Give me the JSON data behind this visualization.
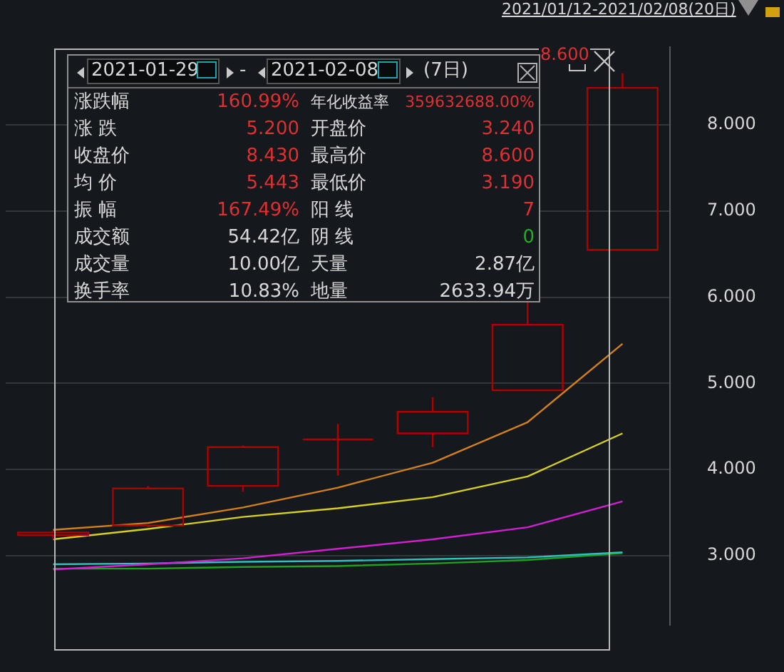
{
  "chart_data": {
    "type": "candlestick",
    "categories": [
      null,
      null,
      null,
      null,
      null,
      null,
      null
    ],
    "series": [
      {
        "color": "#b00000",
        "ohlc": [
          [
            3.24,
            3.29,
            3.19,
            3.27
          ],
          [
            3.35,
            3.81,
            3.33,
            3.78
          ],
          [
            3.81,
            4.28,
            3.74,
            4.26
          ],
          [
            4.35,
            4.53,
            3.93,
            4.35
          ],
          [
            4.42,
            4.84,
            4.26,
            4.67
          ],
          [
            4.92,
            5.96,
            4.92,
            5.68
          ],
          [
            6.55,
            8.6,
            6.55,
            8.43
          ]
        ]
      },
      {
        "type": "line",
        "color": "#d2801a",
        "values": [
          3.3,
          3.38,
          3.56,
          3.79,
          4.08,
          4.55,
          5.46
        ]
      },
      {
        "type": "line",
        "color": "#d8d020",
        "values": [
          3.19,
          3.31,
          3.45,
          3.55,
          3.68,
          3.92,
          4.42
        ]
      },
      {
        "type": "line",
        "color": "#d020d0",
        "values": [
          2.84,
          2.9,
          2.97,
          3.08,
          3.19,
          3.33,
          3.63
        ]
      },
      {
        "type": "line",
        "color": "#30c0c0",
        "values": [
          2.9,
          2.91,
          2.93,
          2.94,
          2.96,
          2.98,
          3.04
        ]
      },
      {
        "type": "line",
        "color": "#20a020",
        "values": [
          2.85,
          2.85,
          2.87,
          2.88,
          2.91,
          2.95,
          3.03
        ]
      }
    ],
    "ylim": [
      2.2,
      8.9
    ],
    "yticks": [
      {
        "value": 3,
        "label": "3.000"
      },
      {
        "value": 4,
        "label": "4.000"
      },
      {
        "value": 5,
        "label": "5.000"
      },
      {
        "value": 6,
        "label": "6.000"
      },
      {
        "value": 7,
        "label": "7.000"
      },
      {
        "value": 8,
        "label": "8.000"
      }
    ],
    "grid": "y",
    "tick_labels": "y",
    "annotations": [
      "2021/01/12-2021/02/08(20日)",
      "8.600",
      "2021-01-29",
      "-",
      "2021-02-08",
      "(7日)",
      "涨跌幅",
      "160.99%",
      "年化收益率",
      "359632688.00%",
      "涨 跌",
      "5.200",
      "开盘价",
      "3.240",
      "收盘价",
      "8.430",
      "最高价",
      "8.600",
      "均 价",
      "5.443",
      "最低价",
      "3.190",
      "振 幅",
      "167.49%",
      "阳 线",
      "7",
      "成交额",
      "54.42亿",
      "阴 线",
      "0",
      "成交量",
      "10.00亿",
      "天量",
      "2.87亿",
      "换手率",
      "10.83%",
      "地量",
      "2633.94万"
    ]
  }
}
